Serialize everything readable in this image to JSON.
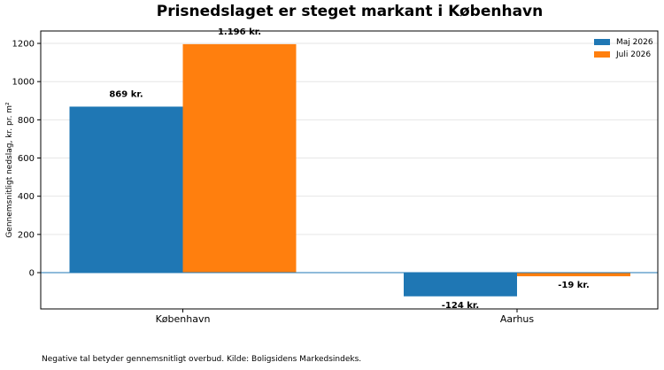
{
  "chart_data": {
    "type": "bar",
    "title": "Prisnedslaget er steget markant i København",
    "ylabel": "Gennemsnitligt nedslag, kr. pr. m²",
    "xlabel": "",
    "categories": [
      "København",
      "Aarhus"
    ],
    "series": [
      {
        "name": "Maj 2026",
        "values": [
          869,
          -124
        ],
        "color": "#1f77b4",
        "labels": [
          "869 kr.",
          "-124 kr."
        ]
      },
      {
        "name": "Juli 2026",
        "values": [
          1196,
          -19
        ],
        "color": "#ff7f0e",
        "labels": [
          "1.196 kr.",
          "-19 kr."
        ]
      }
    ],
    "ylim": [
      -190,
      1265
    ],
    "yticks": [
      0,
      200,
      400,
      600,
      800,
      1000,
      1200
    ],
    "grid": true,
    "legend_position": "top-right",
    "zero_line_color": "#1f77b4"
  },
  "footnote": "Negative tal betyder gennemsnitligt overbud. Kilde: Boligsidens Markedsindeks."
}
